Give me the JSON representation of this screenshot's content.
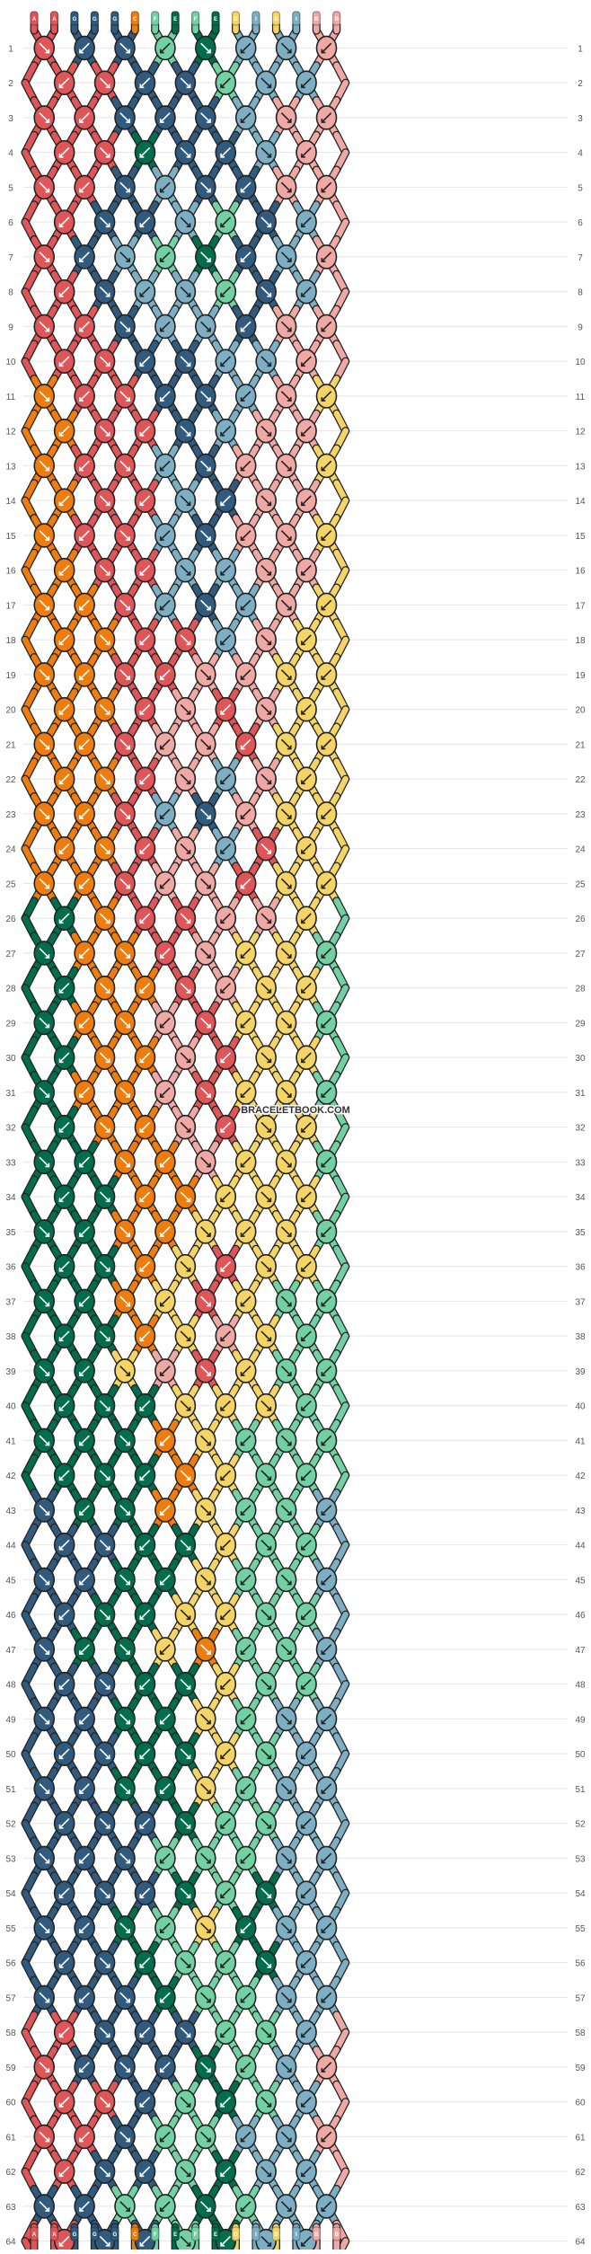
{
  "pattern": {
    "strand_letters_top": [
      "A",
      "A",
      "G",
      "G",
      "G",
      "C",
      "F",
      "E",
      "F",
      "E",
      "D",
      "I",
      "D",
      "I",
      "B",
      "B"
    ],
    "strand_letters_bottom": [
      "A",
      "A",
      "G",
      "G",
      "G",
      "C",
      "F",
      "E",
      "F",
      "E",
      "D",
      "I",
      "D",
      "I",
      "B",
      "B"
    ],
    "watermark": "BRACELETBOOK.COM",
    "row_numbers": [
      "1",
      "2",
      "3",
      "4",
      "5",
      "6",
      "7",
      "8",
      "9",
      "10",
      "11",
      "12",
      "13",
      "14",
      "15",
      "16",
      "17",
      "18",
      "19",
      "20",
      "21",
      "22",
      "23",
      "24",
      "25",
      "26",
      "27",
      "28",
      "29",
      "30",
      "31",
      "32",
      "33",
      "34",
      "35",
      "36",
      "37",
      "38",
      "39",
      "40",
      "41",
      "42",
      "43",
      "44",
      "45",
      "46",
      "47",
      "48",
      "49",
      "50",
      "51",
      "52",
      "53",
      "54",
      "55",
      "56",
      "57",
      "58",
      "59",
      "60",
      "61",
      "62",
      "63",
      "64"
    ],
    "colors": {
      "A": "#e05558",
      "B": "#f0a8a4",
      "C": "#ef7d0e",
      "D": "#f5d466",
      "E": "#006e4c",
      "F": "#72d1a3",
      "G": "#315b7e",
      "I": "#7dafc4"
    },
    "row_colors": [
      [
        "A",
        "G",
        "G",
        "F",
        "E",
        "I",
        "I",
        "B"
      ],
      [
        "A",
        "A",
        "G",
        "G",
        "F",
        "I",
        "I",
        "B"
      ],
      [
        "A",
        "A",
        "G",
        "G",
        "G",
        "I",
        "B",
        "B"
      ],
      [
        "A",
        "A",
        "E",
        "G",
        "G",
        "I",
        "B",
        "B"
      ],
      [
        "A",
        "A",
        "G",
        "I",
        "G",
        "G",
        "B",
        "B"
      ],
      [
        "A",
        "G",
        "G",
        "I",
        "F",
        "G",
        "I",
        "B"
      ],
      [
        "A",
        "G",
        "I",
        "F",
        "E",
        "G",
        "I",
        "B"
      ],
      [
        "A",
        "G",
        "I",
        "I",
        "F",
        "G",
        "I",
        "B"
      ],
      [
        "A",
        "A",
        "G",
        "I",
        "I",
        "G",
        "B",
        "B"
      ],
      [
        "A",
        "A",
        "G",
        "G",
        "I",
        "I",
        "B",
        "B"
      ],
      [
        "C",
        "A",
        "A",
        "G",
        "G",
        "I",
        "B",
        "D"
      ],
      [
        "C",
        "A",
        "A",
        "G",
        "I",
        "B",
        "B",
        "D"
      ],
      [
        "C",
        "A",
        "A",
        "I",
        "G",
        "B",
        "B",
        "D"
      ],
      [
        "C",
        "A",
        "A",
        "I",
        "G",
        "B",
        "B",
        "D"
      ],
      [
        "C",
        "A",
        "A",
        "I",
        "G",
        "B",
        "B",
        "D"
      ],
      [
        "C",
        "A",
        "A",
        "I",
        "I",
        "B",
        "B",
        "D"
      ],
      [
        "C",
        "C",
        "A",
        "I",
        "G",
        "I",
        "B",
        "D"
      ],
      [
        "C",
        "C",
        "A",
        "A",
        "I",
        "B",
        "D",
        "D"
      ],
      [
        "C",
        "C",
        "A",
        "A",
        "B",
        "B",
        "D",
        "D"
      ],
      [
        "C",
        "C",
        "A",
        "B",
        "A",
        "B",
        "D",
        "D"
      ],
      [
        "C",
        "C",
        "A",
        "B",
        "B",
        "A",
        "D",
        "D"
      ],
      [
        "C",
        "C",
        "A",
        "B",
        "I",
        "B",
        "D",
        "D"
      ],
      [
        "C",
        "C",
        "A",
        "I",
        "G",
        "B",
        "D",
        "D"
      ],
      [
        "C",
        "C",
        "A",
        "B",
        "I",
        "A",
        "D",
        "D"
      ],
      [
        "C",
        "C",
        "A",
        "B",
        "B",
        "A",
        "D",
        "D"
      ],
      [
        "E",
        "C",
        "A",
        "A",
        "B",
        "B",
        "D",
        "F"
      ],
      [
        "E",
        "C",
        "C",
        "A",
        "B",
        "D",
        "D",
        "F"
      ],
      [
        "E",
        "C",
        "C",
        "A",
        "B",
        "D",
        "D",
        "F"
      ],
      [
        "E",
        "C",
        "C",
        "B",
        "A",
        "D",
        "D",
        "F"
      ],
      [
        "E",
        "C",
        "C",
        "B",
        "A",
        "D",
        "D",
        "F"
      ],
      [
        "E",
        "C",
        "C",
        "B",
        "A",
        "D",
        "D",
        "F"
      ],
      [
        "E",
        "C",
        "C",
        "B",
        "A",
        "D",
        "D",
        "F"
      ],
      [
        "E",
        "E",
        "C",
        "C",
        "B",
        "D",
        "D",
        "F"
      ],
      [
        "E",
        "E",
        "C",
        "C",
        "D",
        "D",
        "D",
        "F"
      ],
      [
        "E",
        "E",
        "C",
        "C",
        "D",
        "D",
        "D",
        "F"
      ],
      [
        "E",
        "E",
        "C",
        "D",
        "A",
        "D",
        "D",
        "F"
      ],
      [
        "E",
        "E",
        "C",
        "D",
        "A",
        "D",
        "F",
        "F"
      ],
      [
        "E",
        "E",
        "C",
        "D",
        "B",
        "D",
        "F",
        "F"
      ],
      [
        "E",
        "E",
        "D",
        "B",
        "A",
        "D",
        "F",
        "F"
      ],
      [
        "E",
        "E",
        "E",
        "D",
        "D",
        "D",
        "F",
        "F"
      ],
      [
        "E",
        "E",
        "E",
        "C",
        "D",
        "F",
        "F",
        "F"
      ],
      [
        "E",
        "E",
        "E",
        "C",
        "D",
        "F",
        "F",
        "F"
      ],
      [
        "G",
        "E",
        "E",
        "C",
        "D",
        "F",
        "F",
        "I"
      ],
      [
        "G",
        "G",
        "E",
        "E",
        "D",
        "F",
        "F",
        "I"
      ],
      [
        "G",
        "G",
        "E",
        "E",
        "D",
        "F",
        "F",
        "I"
      ],
      [
        "G",
        "E",
        "E",
        "D",
        "D",
        "F",
        "F",
        "I"
      ],
      [
        "G",
        "E",
        "E",
        "D",
        "C",
        "F",
        "F",
        "I"
      ],
      [
        "G",
        "G",
        "E",
        "E",
        "D",
        "F",
        "F",
        "I"
      ],
      [
        "G",
        "G",
        "E",
        "E",
        "D",
        "F",
        "I",
        "I"
      ],
      [
        "G",
        "G",
        "E",
        "E",
        "D",
        "F",
        "I",
        "I"
      ],
      [
        "G",
        "G",
        "E",
        "E",
        "D",
        "F",
        "I",
        "I"
      ],
      [
        "G",
        "G",
        "G",
        "E",
        "F",
        "F",
        "I",
        "I"
      ],
      [
        "G",
        "G",
        "G",
        "F",
        "F",
        "F",
        "I",
        "I"
      ],
      [
        "G",
        "G",
        "G",
        "E",
        "F",
        "E",
        "I",
        "I"
      ],
      [
        "G",
        "G",
        "E",
        "F",
        "D",
        "E",
        "I",
        "I"
      ],
      [
        "G",
        "G",
        "E",
        "F",
        "F",
        "E",
        "I",
        "I"
      ],
      [
        "G",
        "G",
        "G",
        "E",
        "F",
        "F",
        "I",
        "I"
      ],
      [
        "A",
        "G",
        "G",
        "G",
        "F",
        "F",
        "I",
        "B"
      ],
      [
        "A",
        "G",
        "G",
        "G",
        "E",
        "F",
        "I",
        "B"
      ],
      [
        "A",
        "A",
        "G",
        "F",
        "E",
        "F",
        "I",
        "B"
      ],
      [
        "A",
        "A",
        "G",
        "F",
        "F",
        "I",
        "I",
        "B"
      ],
      [
        "A",
        "G",
        "G",
        "F",
        "E",
        "I",
        "I",
        "B"
      ],
      [
        "G",
        "G",
        "F",
        "F",
        "E",
        "F",
        "I",
        "I"
      ],
      [
        "A",
        "G",
        "G",
        "F",
        "E",
        "I",
        "I",
        "B"
      ]
    ]
  }
}
